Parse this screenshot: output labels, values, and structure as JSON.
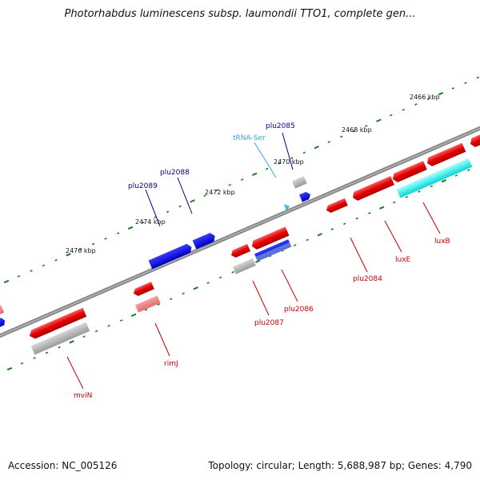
{
  "title": "Photorhabdus luminescens subsp. laumondii TTO1, complete gen...",
  "footer": {
    "accession": "Accession: NC_005126",
    "summary": "Topology: circular; Length: 5,688,987 bp; Genes: 4,790"
  },
  "scale_labels": [
    "2466 kbp",
    "2468 kbp",
    "2470 kbp",
    "2472 kbp",
    "2474 kbp",
    "2476 kbp"
  ],
  "gene_labels": [
    {
      "text": "plu2085",
      "strand": "forward"
    },
    {
      "text": "tRNA-Ser",
      "strand": "forward"
    },
    {
      "text": "plu2088",
      "strand": "forward"
    },
    {
      "text": "plu2089",
      "strand": "forward"
    },
    {
      "text": "plu2084",
      "strand": "reverse"
    },
    {
      "text": "luxE",
      "strand": "reverse"
    },
    {
      "text": "luxB",
      "strand": "reverse"
    },
    {
      "text": "plu2086",
      "strand": "reverse"
    },
    {
      "text": "plu2087",
      "strand": "reverse"
    },
    {
      "text": "rimJ",
      "strand": "reverse"
    },
    {
      "text": "mviN",
      "strand": "reverse"
    }
  ],
  "colors": {
    "forward_cds": "#0a0ad0",
    "reverse_cds": "#e00000",
    "trna": "#33bbe0",
    "gc_skew": "#00ffff",
    "grey_track": "#a0a0a0",
    "backbone": "#777777",
    "tick": "#1a7a1a",
    "forward_label": "#00008b",
    "reverse_label": "#cc0000",
    "trna_label": "#33aadd"
  }
}
